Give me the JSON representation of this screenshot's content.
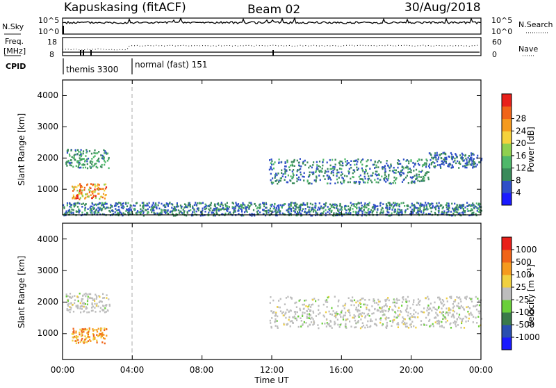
{
  "header": {
    "station": "Kapuskasing (fitACF)",
    "beam": "Beam 02",
    "date": "30/Aug/2018"
  },
  "panels": {
    "nsky_label": "N.Sky",
    "nsearch_label": "N.Search",
    "nsky_ticks": [
      "10^5",
      "10^0"
    ],
    "nsearch_ticks": [
      "10^5",
      "10^0"
    ],
    "freq_label_line1": "Freq.",
    "freq_label_line2": "[MHz]",
    "freq_ticks": [
      "18",
      "8"
    ],
    "nave_label": "Nave",
    "nave_ticks": [
      "60",
      "0"
    ],
    "cpid_label": "CPID",
    "cpid_segments": [
      {
        "name": "themis",
        "id": "3300",
        "label": "themis 3300"
      },
      {
        "name": "normal (fast)",
        "id": "151",
        "label": "normal (fast) 151"
      }
    ]
  },
  "colors": {
    "power": [
      "#1a1aff",
      "#2f4fc8",
      "#3a8a5a",
      "#4fb86a",
      "#8fd04f",
      "#f5d23c",
      "#f59a1e",
      "#f06418",
      "#e8201a"
    ],
    "velocity": [
      "#1a1aff",
      "#2a4fb0",
      "#3a7a4a",
      "#6acf3a",
      "#bdbdbd",
      "#f0d040",
      "#f59a1e",
      "#f06418",
      "#e8201a"
    ]
  },
  "chart_data": [
    {
      "type": "heatmap",
      "quantity": "Power",
      "xlabel": "",
      "ylabel": "Slant Range [km]",
      "x_range": [
        "00:00",
        "00:00 (+24h)"
      ],
      "ylim": [
        180,
        4500
      ],
      "yticks": [
        1000,
        2000,
        3000,
        4000
      ],
      "colorbar": {
        "label": "Power [dB]",
        "range": [
          0,
          32
        ],
        "ticks": [
          "4",
          "8",
          "12",
          "16",
          "20",
          "24",
          "28"
        ]
      },
      "cpid_change_time": "03:45",
      "features": [
        {
          "desc": "echo band",
          "time": [
            "00:10",
            "02:40"
          ],
          "range_km": [
            1700,
            2300
          ],
          "power_db": [
            6,
            14
          ]
        },
        {
          "desc": "strong echoes",
          "time": [
            "00:30",
            "02:30"
          ],
          "range_km": [
            700,
            1200
          ],
          "power_db": [
            16,
            30
          ]
        },
        {
          "desc": "echo band",
          "time": [
            "11:50",
            "21:00"
          ],
          "range_km": [
            1200,
            2000
          ],
          "power_db": [
            4,
            12
          ]
        },
        {
          "desc": "echo band",
          "time": [
            "21:00",
            "24:00"
          ],
          "range_km": [
            1700,
            2200
          ],
          "power_db": [
            4,
            10
          ]
        },
        {
          "desc": "near-range echoes",
          "time": [
            "00:00",
            "24:00"
          ],
          "range_km": [
            180,
            600
          ],
          "power_db": [
            4,
            12
          ]
        }
      ]
    },
    {
      "type": "heatmap",
      "quantity": "Velocity",
      "xlabel": "Time UT",
      "ylabel": "Slant Range [km]",
      "x_range": [
        "00:00",
        "00:00 (+24h)"
      ],
      "xticks": [
        "00:00",
        "04:00",
        "08:00",
        "12:00",
        "16:00",
        "20:00",
        "00:00"
      ],
      "ylim": [
        180,
        4500
      ],
      "yticks": [
        1000,
        2000,
        3000,
        4000
      ],
      "colorbar": {
        "label": "Velocity [m s^-1]",
        "label_main": "Velocity [m s",
        "label_sup": "-1",
        "label_end": "]",
        "ticks": [
          "1000",
          "500",
          "100",
          "25",
          "-25",
          "-100",
          "-500",
          "-1000"
        ]
      },
      "features": [
        {
          "desc": "near-zero velocity band",
          "time": [
            "00:10",
            "02:40"
          ],
          "range_km": [
            1700,
            2300
          ],
          "velocity": [
            -25,
            25
          ]
        },
        {
          "desc": "receding flow",
          "time": [
            "00:30",
            "02:30"
          ],
          "range_km": [
            700,
            1200
          ],
          "velocity": [
            -500,
            -100
          ]
        },
        {
          "desc": "near-zero velocity band",
          "time": [
            "11:50",
            "24:00"
          ],
          "range_km": [
            1200,
            2200
          ],
          "velocity": [
            -25,
            25
          ]
        }
      ]
    }
  ]
}
